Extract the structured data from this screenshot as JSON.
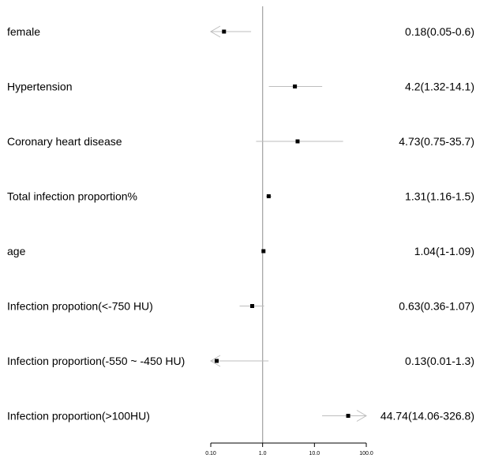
{
  "chart_data": {
    "type": "forest",
    "title": "",
    "xlabel": "",
    "ylabel": "",
    "x_scale": "log",
    "xlim": [
      0.1,
      100
    ],
    "reference_line": 1,
    "grid": false,
    "legend": "none",
    "x_ticks": [
      {
        "value": 0.1,
        "label": "0.10"
      },
      {
        "value": 1,
        "label": "1.0"
      },
      {
        "value": 10,
        "label": "10.0"
      },
      {
        "value": 100,
        "label": "100.0"
      }
    ],
    "rows": [
      {
        "label": "female",
        "estimate": 0.18,
        "lower": 0.05,
        "upper": 0.6,
        "text": "0.18(0.05-0.6)"
      },
      {
        "label": "Hypertension",
        "estimate": 4.2,
        "lower": 1.32,
        "upper": 14.1,
        "text": "4.2(1.32-14.1)"
      },
      {
        "label": "Coronary heart disease",
        "estimate": 4.73,
        "lower": 0.75,
        "upper": 35.7,
        "text": "4.73(0.75-35.7)"
      },
      {
        "label": "Total infection proportion%",
        "estimate": 1.31,
        "lower": 1.16,
        "upper": 1.5,
        "text": "1.31(1.16-1.5)"
      },
      {
        "label": "age",
        "estimate": 1.04,
        "lower": 1,
        "upper": 1.09,
        "text": "1.04(1-1.09)"
      },
      {
        "label": "Infection propotion(<-750 HU)",
        "estimate": 0.63,
        "lower": 0.36,
        "upper": 1.07,
        "text": "0.63(0.36-1.07)"
      },
      {
        "label": "Infection proportion(-550 ~ -450 HU)",
        "estimate": 0.13,
        "lower": 0.01,
        "upper": 1.3,
        "text": "0.13(0.01-1.3)"
      },
      {
        "label": "Infection proportion(>100HU)",
        "estimate": 44.74,
        "lower": 14.06,
        "upper": 326.8,
        "text": "44.74(14.06-326.8)"
      }
    ],
    "colors": {
      "marker": "#000000",
      "ci_line": "#bdbdbd",
      "reference_line": "#a8a8a8",
      "axis": "#000000",
      "text": "#000000"
    }
  }
}
